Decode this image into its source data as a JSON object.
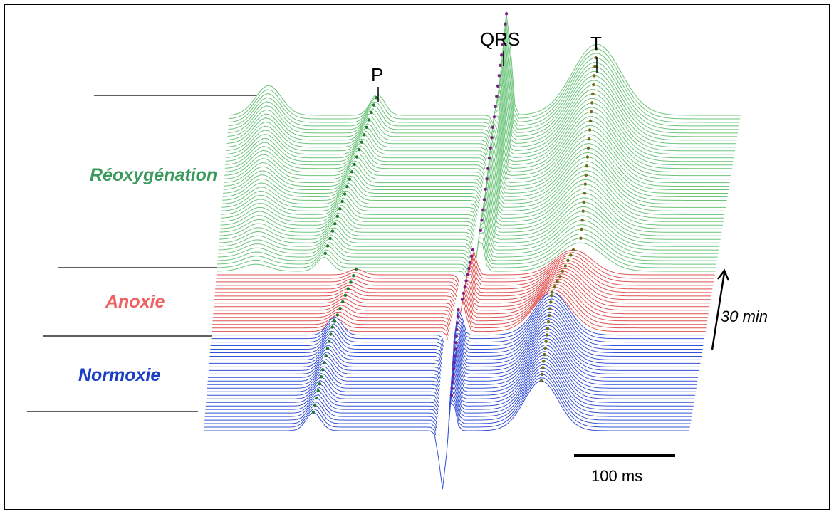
{
  "phases": [
    {
      "key": "reox",
      "label": "Réoxygénation",
      "color": "#3a9a5c",
      "line_color": "#6cc47a"
    },
    {
      "key": "anox",
      "label": "Anoxie",
      "color": "#f06060",
      "line_color": "#e05050"
    },
    {
      "key": "norm",
      "label": "Normoxie",
      "color": "#1a3fc4",
      "line_color": "#3550d8"
    }
  ],
  "waves": {
    "p": "P",
    "qrs": "QRS",
    "t": "T"
  },
  "time_arrow_label": "30 min",
  "scale_bar_label": "100 ms",
  "marker_colors": {
    "p": "#1e7a2c",
    "qrs": "#7b1f86",
    "t": "#6f6b18"
  }
}
